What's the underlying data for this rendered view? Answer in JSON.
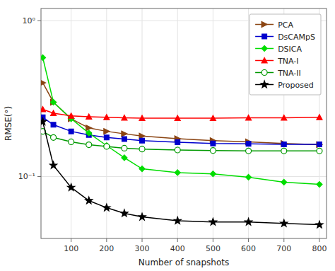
{
  "chart_data": {
    "type": "line",
    "xlabel": "Number of snapshots",
    "ylabel": "RMSE(°)",
    "x": [
      20,
      50,
      100,
      150,
      200,
      250,
      300,
      400,
      500,
      600,
      700,
      800
    ],
    "series": [
      {
        "name": "PCA",
        "color": "#8B4513",
        "marker": "triangle-right",
        "values": [
          0.4,
          0.3,
          0.235,
          0.205,
          0.195,
          0.188,
          0.182,
          0.175,
          0.17,
          0.167,
          0.163,
          0.16
        ]
      },
      {
        "name": "DsCAMpS",
        "color": "#0000CD",
        "marker": "square",
        "values": [
          0.24,
          0.215,
          0.195,
          0.185,
          0.178,
          0.174,
          0.17,
          0.166,
          0.163,
          0.162,
          0.161,
          0.161
        ]
      },
      {
        "name": "DSICA",
        "color": "#00DD00",
        "marker": "diamond",
        "values": [
          0.58,
          0.3,
          0.235,
          0.19,
          0.158,
          0.132,
          0.112,
          0.106,
          0.104,
          0.099,
          0.092,
          0.089
        ]
      },
      {
        "name": "TNA-I",
        "color": "#FF0000",
        "marker": "triangle-up",
        "values": [
          0.27,
          0.255,
          0.245,
          0.242,
          0.24,
          0.238,
          0.237,
          0.237,
          0.237,
          0.238,
          0.238,
          0.24
        ]
      },
      {
        "name": "TNA-II",
        "color": "#009900",
        "marker": "open-circle",
        "values": [
          0.195,
          0.178,
          0.167,
          0.16,
          0.156,
          0.152,
          0.15,
          0.148,
          0.147,
          0.146,
          0.146,
          0.146
        ]
      },
      {
        "name": "Proposed",
        "color": "#000000",
        "marker": "star",
        "values": [
          0.225,
          0.118,
          0.085,
          0.07,
          0.063,
          0.058,
          0.055,
          0.052,
          0.051,
          0.051,
          0.05,
          0.049
        ]
      }
    ],
    "log": "y",
    "xlim": [
      15,
      820
    ],
    "ylim": [
      0.04,
      1.2
    ],
    "xticks": [
      100,
      200,
      300,
      400,
      500,
      600,
      700,
      800
    ],
    "yticks": [
      {
        "value": 0.1,
        "label": "10⁻¹"
      },
      {
        "value": 1.0,
        "label": "10⁰"
      }
    ],
    "grid": true,
    "legend": "upper right"
  }
}
